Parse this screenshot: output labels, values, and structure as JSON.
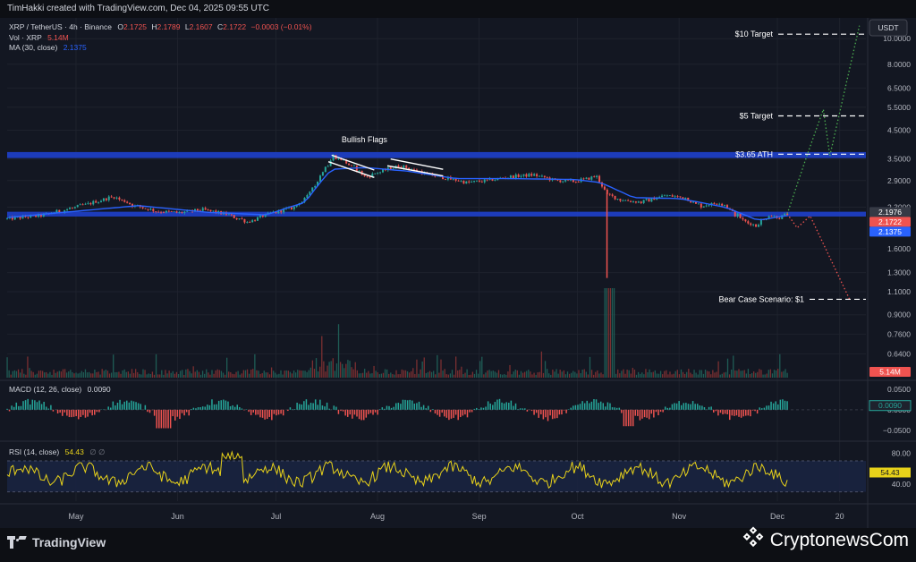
{
  "header": {
    "credit": "TimHakki created with TradingView.com, Dec 04, 2025 09:55 UTC"
  },
  "legend": {
    "symbol": "XRP / TetherUS · 4h · Binance",
    "o_label": "O",
    "o_value": "2.1725",
    "h_label": "H",
    "h_value": "2.1789",
    "l_label": "L",
    "l_value": "2.1607",
    "c_label": "C",
    "c_value": "2.1722",
    "change": "−0.0003 (−0.01%)",
    "vol_label": "Vol · XRP",
    "vol_value": "5.14M",
    "ma_label": "MA (30, close)",
    "ma_value": "2.1375"
  },
  "currency_button": "USDT",
  "footer": {
    "tv_brand": "TradingView",
    "cn_brand": "CryptonewsCom"
  },
  "colors": {
    "background": "#131722",
    "grid": "#1e222d",
    "zone": "#1e40c8",
    "up": "#26a69a",
    "down": "#ef5350",
    "ma": "#2962ff",
    "rsi": "#e8d21a",
    "bull_path": "#4caf50",
    "bear_path": "#ef5350",
    "annotation": "#ffffff"
  },
  "chart_data": [
    {
      "type": "line",
      "pane": "price",
      "scale": "log",
      "ylim": [
        0.52,
        11.8
      ],
      "x_tick_labels": [
        "May",
        "Jun",
        "Jul",
        "Aug",
        "Sep",
        "Oct",
        "Nov",
        "Dec",
        "20"
      ],
      "y_tick_labels": [
        "10.0000",
        "8.0000",
        "6.5000",
        "5.5000",
        "4.5000",
        "3.5000",
        "2.9000",
        "2.3000",
        "1.6000",
        "1.3000",
        "1.1000",
        "0.9000",
        "0.7600",
        "0.6400"
      ],
      "y_ticks": [
        10,
        8,
        6.5,
        5.5,
        4.5,
        3.5,
        2.9,
        2.3,
        1.6,
        1.3,
        1.1,
        0.9,
        0.76,
        0.64
      ],
      "price_tags": [
        {
          "value": 2.1976,
          "label": "2.1976",
          "color": "#363a45"
        },
        {
          "value": 2.1722,
          "label": "2.1722",
          "color": "#ef5350"
        },
        {
          "value": 2.1375,
          "label": "2.1375",
          "color": "#2962ff"
        }
      ],
      "zones": [
        {
          "low": 3.53,
          "high": 3.72
        },
        {
          "low": 2.12,
          "high": 2.21
        }
      ],
      "series": [
        {
          "kind": "price",
          "x": [
            "2025-04-10",
            "2025-04-20",
            "2025-04-28",
            "2025-05-05",
            "2025-05-12",
            "2025-05-18",
            "2025-05-25",
            "2025-06-01",
            "2025-06-08",
            "2025-06-15",
            "2025-06-22",
            "2025-06-29",
            "2025-07-06",
            "2025-07-10",
            "2025-07-14",
            "2025-07-18",
            "2025-07-21",
            "2025-07-25",
            "2025-07-28",
            "2025-08-02",
            "2025-08-07",
            "2025-08-11",
            "2025-08-16",
            "2025-08-22",
            "2025-08-28",
            "2025-09-03",
            "2025-09-10",
            "2025-09-17",
            "2025-09-24",
            "2025-09-30",
            "2025-10-06",
            "2025-10-10",
            "2025-10-14",
            "2025-10-20",
            "2025-10-27",
            "2025-11-02",
            "2025-11-07",
            "2025-11-13",
            "2025-11-20",
            "2025-11-24",
            "2025-11-28",
            "2025-12-01",
            "2025-12-04"
          ],
          "y": [
            2.08,
            2.14,
            2.26,
            2.38,
            2.52,
            2.34,
            2.22,
            2.19,
            2.25,
            2.17,
            2.02,
            2.18,
            2.3,
            2.52,
            3.02,
            3.6,
            3.45,
            3.2,
            3.0,
            3.15,
            3.3,
            3.2,
            3.05,
            2.95,
            2.85,
            2.9,
            3.0,
            3.05,
            2.9,
            2.88,
            3.0,
            2.55,
            2.45,
            2.4,
            2.55,
            2.5,
            2.32,
            2.4,
            2.05,
            1.95,
            2.15,
            2.1,
            2.17
          ]
        },
        {
          "name": "MA (30, close)",
          "kind": "ma",
          "x": [
            "2025-04-10",
            "2025-05-01",
            "2025-05-20",
            "2025-06-10",
            "2025-06-28",
            "2025-07-10",
            "2025-07-18",
            "2025-07-28",
            "2025-08-10",
            "2025-08-25",
            "2025-09-10",
            "2025-09-30",
            "2025-10-08",
            "2025-10-18",
            "2025-11-01",
            "2025-11-15",
            "2025-11-25",
            "2025-12-04"
          ],
          "y": [
            2.1,
            2.22,
            2.33,
            2.2,
            2.15,
            2.4,
            3.2,
            3.25,
            3.15,
            2.95,
            2.95,
            2.93,
            2.85,
            2.5,
            2.48,
            2.3,
            2.05,
            2.1375
          ]
        },
        {
          "kind": "bull_path",
          "x": [
            "2025-12-04",
            "2025-12-10",
            "2025-12-15",
            "2025-12-17",
            "2025-12-26"
          ],
          "y": [
            2.17,
            3.6,
            5.4,
            3.6,
            11.2
          ]
        },
        {
          "kind": "bear_path",
          "x": [
            "2025-12-04",
            "2025-12-07",
            "2025-12-11",
            "2025-12-23"
          ],
          "y": [
            2.17,
            1.92,
            2.13,
            1.03
          ]
        }
      ],
      "wick": {
        "x": "2025-10-10",
        "low": 1.24
      },
      "annotations": [
        {
          "text": "Bullish Flags",
          "x": "2025-07-28",
          "y": 4.05,
          "kind": "label"
        },
        {
          "text": "$10 Target",
          "value": 10.4,
          "kind": "target"
        },
        {
          "text": "$5 Target",
          "value": 5.1,
          "kind": "target"
        },
        {
          "text": "$3.65 ATH",
          "value": 3.65,
          "kind": "target"
        },
        {
          "text": "Bear Case Scenario: $1",
          "value": 1.03,
          "kind": "target"
        }
      ],
      "flags": [
        {
          "x1": "2025-07-18",
          "y1": 3.62,
          "x2": "2025-07-31",
          "y2": 3.18
        },
        {
          "x1": "2025-07-17",
          "y1": 3.42,
          "x2": "2025-07-31",
          "y2": 2.98
        },
        {
          "x1": "2025-08-05",
          "y1": 3.5,
          "x2": "2025-08-21",
          "y2": 3.2
        },
        {
          "x1": "2025-08-04",
          "y1": 3.3,
          "x2": "2025-08-21",
          "y2": 3.02
        }
      ]
    },
    {
      "type": "bar",
      "pane": "volume",
      "name": "Vol · XRP",
      "last_label": "5.14M"
    },
    {
      "type": "bar",
      "pane": "macd",
      "name": "MACD (12, 26, close)",
      "value_label": "0.0090",
      "ylim": [
        -0.07,
        0.065
      ],
      "y_ticks": [
        0.05,
        0,
        -0.05
      ],
      "y_tick_labels": [
        "0.0500",
        "0.0000",
        "−0.0500"
      ]
    },
    {
      "type": "line",
      "pane": "rsi",
      "name": "RSI (14, close)",
      "value_label": "54.43",
      "extra": "∅ ∅",
      "ylim": [
        18,
        92
      ],
      "y_ticks": [
        80,
        40
      ],
      "y_tick_labels": [
        "80.00",
        "40.00"
      ],
      "bands": [
        70,
        30
      ]
    }
  ]
}
